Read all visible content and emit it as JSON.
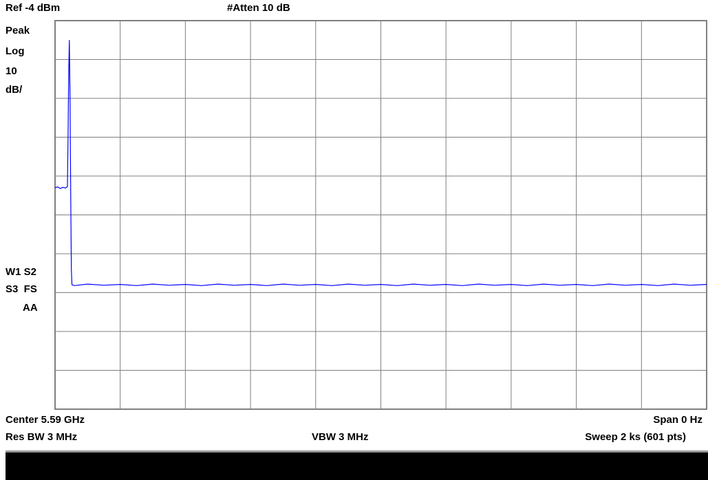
{
  "header": {
    "ref_level": "Ref -4 dBm",
    "attenuation": "#Atten 10 dB"
  },
  "left_panel": {
    "detector": "Peak",
    "scale_type": "Log",
    "scale_value": "10",
    "scale_unit": "dB/",
    "trace_flags_1": "W1 S2",
    "trace_flags_2": "S3  FS",
    "trace_flags_3": "AA"
  },
  "footer": {
    "center": "Center 5.59 GHz",
    "span": "Span 0 Hz",
    "res_bw": "Res BW 3 MHz",
    "vbw": "VBW 3 MHz",
    "sweep": "Sweep 2 ks (601 pts)"
  },
  "colors": {
    "trace": "#0000ff",
    "grid": "#7f7f7f",
    "background": "#ffffff",
    "status_bar": "#000000"
  },
  "chart_data": {
    "type": "line",
    "x_unit": "time (s)",
    "xlim": [
      0,
      2000
    ],
    "ylim": [
      -104,
      -4
    ],
    "y_unit": "dBm",
    "grid": true,
    "divisions": {
      "x": 10,
      "y": 10
    },
    "series": [
      {
        "points": [
          [
            0,
            -47
          ],
          [
            8,
            -46.8
          ],
          [
            16,
            -47.2
          ],
          [
            24,
            -46.9
          ],
          [
            32,
            -47.1
          ],
          [
            38,
            -46.7
          ],
          [
            40,
            -34
          ],
          [
            42,
            -17
          ],
          [
            44,
            -9
          ],
          [
            46,
            -24
          ],
          [
            48,
            -47
          ],
          [
            50,
            -68
          ],
          [
            52,
            -72
          ],
          [
            60,
            -72.2
          ],
          [
            100,
            -71.8
          ],
          [
            150,
            -72.1
          ],
          [
            200,
            -71.9
          ],
          [
            250,
            -72.2
          ],
          [
            300,
            -71.8
          ],
          [
            350,
            -72.1
          ],
          [
            400,
            -71.9
          ],
          [
            450,
            -72.2
          ],
          [
            500,
            -71.8
          ],
          [
            550,
            -72.1
          ],
          [
            600,
            -71.9
          ],
          [
            650,
            -72.2
          ],
          [
            700,
            -71.8
          ],
          [
            750,
            -72.1
          ],
          [
            800,
            -71.9
          ],
          [
            850,
            -72.2
          ],
          [
            900,
            -71.8
          ],
          [
            950,
            -72.1
          ],
          [
            1000,
            -71.9
          ],
          [
            1050,
            -72.2
          ],
          [
            1100,
            -71.8
          ],
          [
            1150,
            -72.1
          ],
          [
            1200,
            -71.9
          ],
          [
            1250,
            -72.2
          ],
          [
            1300,
            -71.8
          ],
          [
            1350,
            -72.1
          ],
          [
            1400,
            -71.9
          ],
          [
            1450,
            -72.2
          ],
          [
            1500,
            -71.8
          ],
          [
            1550,
            -72.1
          ],
          [
            1600,
            -71.9
          ],
          [
            1650,
            -72.2
          ],
          [
            1700,
            -71.8
          ],
          [
            1750,
            -72.1
          ],
          [
            1800,
            -71.9
          ],
          [
            1850,
            -72.2
          ],
          [
            1900,
            -71.8
          ],
          [
            1950,
            -72.1
          ],
          [
            2000,
            -71.9
          ]
        ]
      }
    ]
  }
}
